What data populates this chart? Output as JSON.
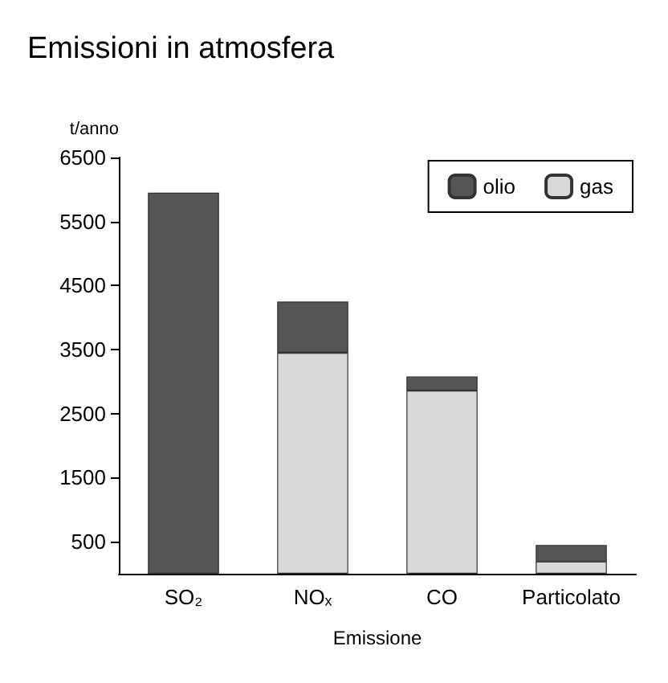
{
  "chart_data": {
    "type": "bar",
    "title": "Emissioni in atmosfera",
    "ylabel": "t/anno",
    "xlabel": "Emissione",
    "categories": [
      "SO₂",
      "NOₓ",
      "CO",
      "Particolato"
    ],
    "stacked": true,
    "series": [
      {
        "name": "gas",
        "color": "#d9d9d9",
        "values": [
          0,
          3450,
          2860,
          190
        ]
      },
      {
        "name": "olio",
        "color": "#555555",
        "values": [
          5950,
          800,
          220,
          260
        ]
      }
    ],
    "ylim": [
      0,
      6500
    ],
    "yticks": [
      500,
      1500,
      2500,
      3500,
      4500,
      5500,
      6500
    ],
    "grid": false,
    "legend": "top right"
  }
}
